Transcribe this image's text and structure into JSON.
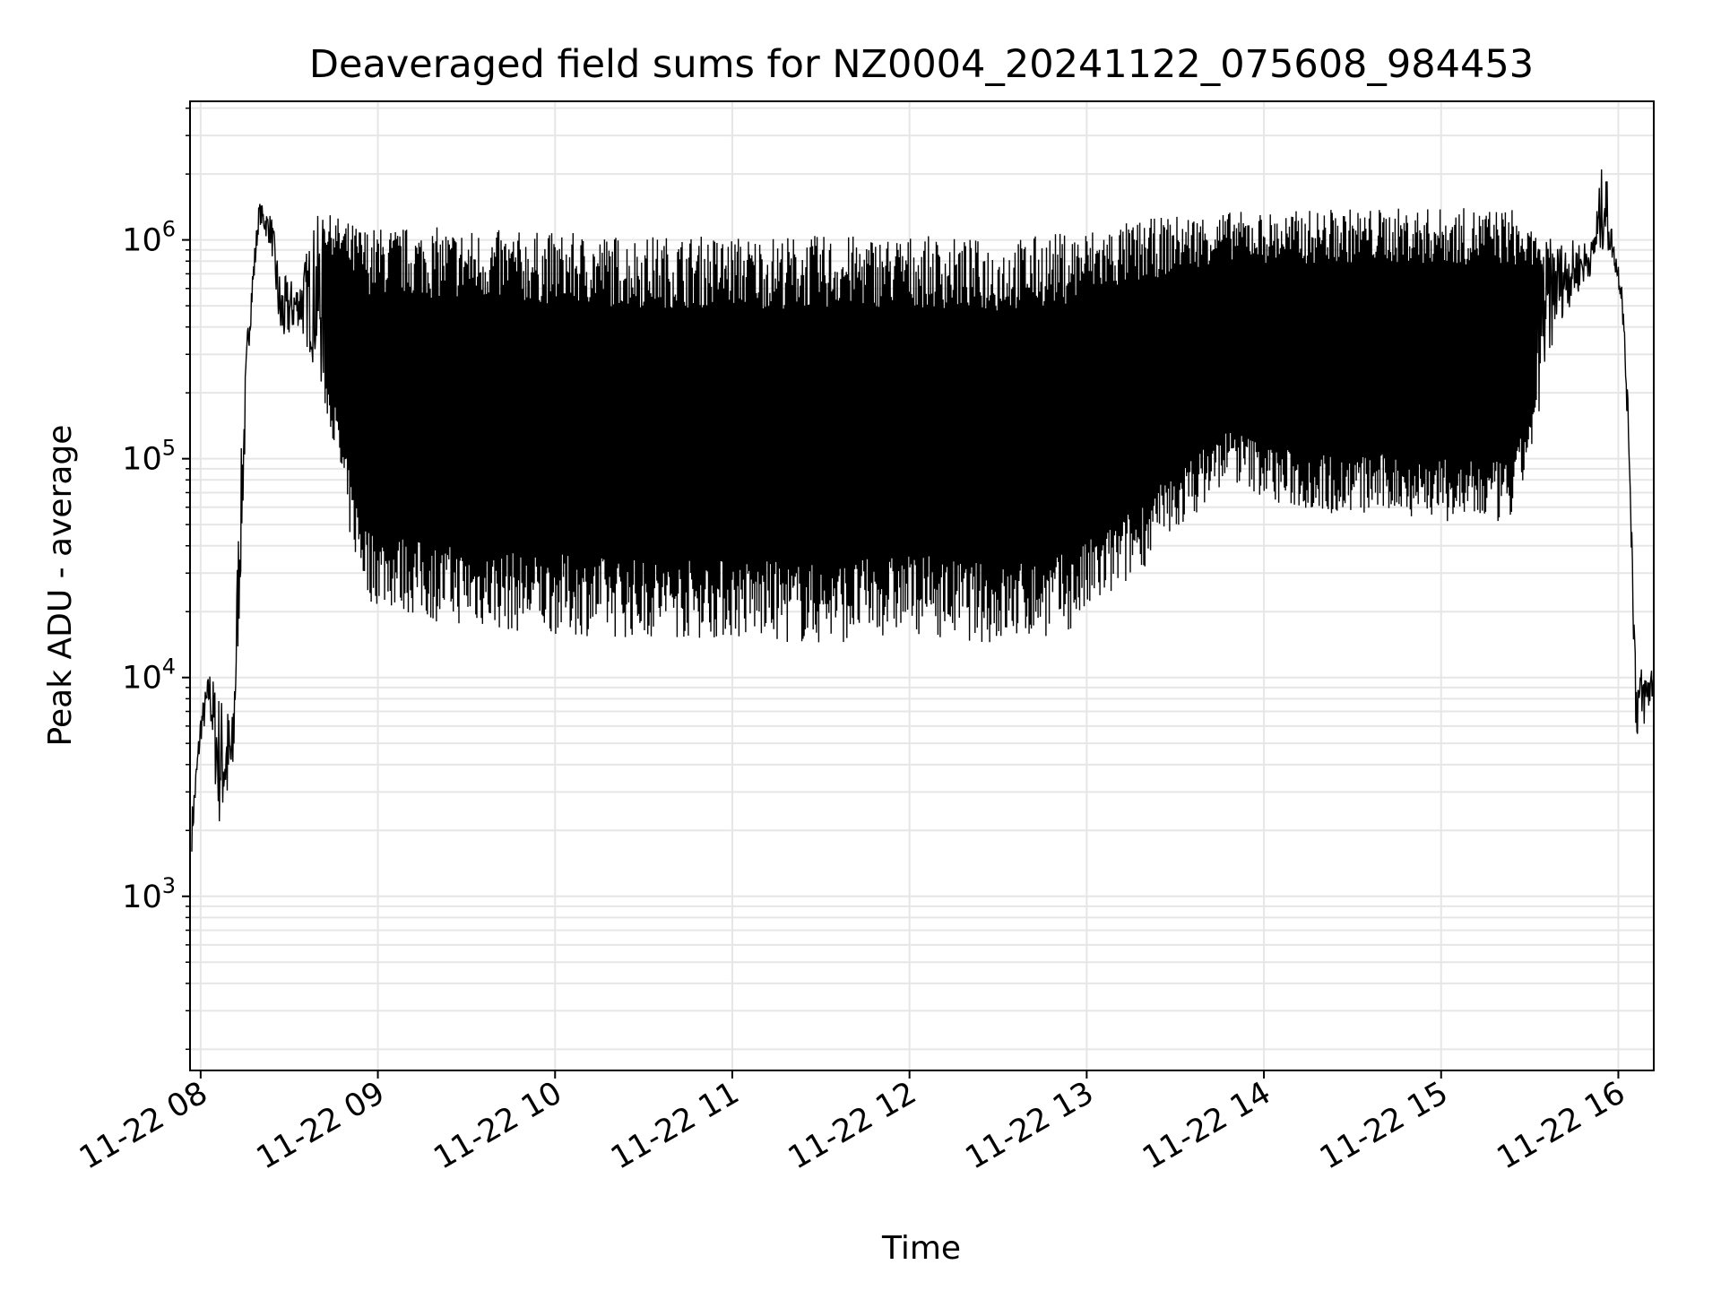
{
  "chart_data": {
    "type": "line",
    "title": "Deaveraged field sums for NZ0004_20241122_075608_984453",
    "xlabel": "Time",
    "ylabel": "Peak ADU - average",
    "yscale": "log",
    "ylim": [
      160,
      4300000
    ],
    "xlim_hours": [
      7.94,
      16.2
    ],
    "grid": true,
    "line_color": "#000000",
    "grid_color": "#e6e6e6",
    "x_ticks": [
      {
        "hour": 8,
        "label": "11-22 08"
      },
      {
        "hour": 9,
        "label": "11-22 09"
      },
      {
        "hour": 10,
        "label": "11-22 10"
      },
      {
        "hour": 11,
        "label": "11-22 11"
      },
      {
        "hour": 12,
        "label": "11-22 12"
      },
      {
        "hour": 13,
        "label": "11-22 13"
      },
      {
        "hour": 14,
        "label": "11-22 14"
      },
      {
        "hour": 15,
        "label": "11-22 15"
      },
      {
        "hour": 16,
        "label": "11-22 16"
      }
    ],
    "y_ticks": [
      {
        "value": 1000,
        "base": "10",
        "exp": "3"
      },
      {
        "value": 10000,
        "base": "10",
        "exp": "4"
      },
      {
        "value": 100000,
        "base": "10",
        "exp": "5"
      },
      {
        "value": 1000000,
        "base": "10",
        "exp": "6"
      }
    ],
    "series": [
      {
        "name": "Peak ADU - average",
        "note": "Rapidly oscillating signal; envelope given as [hour, lower, upper] in ADU",
        "envelope": [
          [
            7.95,
            1600,
            2500
          ],
          [
            8.0,
            5000,
            7000
          ],
          [
            8.05,
            7000,
            11000
          ],
          [
            8.1,
            2000,
            9000
          ],
          [
            8.18,
            2500,
            7000
          ],
          [
            8.22,
            20000,
            80000
          ],
          [
            8.27,
            300000,
            500000
          ],
          [
            8.33,
            1200000,
            1500000
          ],
          [
            8.4,
            900000,
            1300000
          ],
          [
            8.45,
            300000,
            700000
          ],
          [
            8.55,
            400000,
            650000
          ],
          [
            8.65,
            250000,
            1300000
          ],
          [
            8.75,
            120000,
            1300000
          ],
          [
            8.85,
            40000,
            1200000
          ],
          [
            8.95,
            22000,
            1150000
          ],
          [
            9.3,
            18000,
            1150000
          ],
          [
            9.8,
            16000,
            1100000
          ],
          [
            10.5,
            15000,
            1050000
          ],
          [
            11.0,
            15000,
            1050000
          ],
          [
            11.5,
            14000,
            1050000
          ],
          [
            12.0,
            16000,
            1050000
          ],
          [
            12.5,
            14000,
            1000000
          ],
          [
            12.9,
            16000,
            1100000
          ],
          [
            13.2,
            25000,
            1200000
          ],
          [
            13.5,
            45000,
            1300000
          ],
          [
            13.8,
            80000,
            1350000
          ],
          [
            14.1,
            60000,
            1350000
          ],
          [
            14.4,
            55000,
            1400000
          ],
          [
            14.8,
            55000,
            1400000
          ],
          [
            15.1,
            50000,
            1400000
          ],
          [
            15.4,
            50000,
            1400000
          ],
          [
            15.5,
            100000,
            1100000
          ],
          [
            15.65,
            400000,
            1000000
          ],
          [
            15.85,
            700000,
            1000000
          ],
          [
            15.92,
            900000,
            2600000
          ],
          [
            15.97,
            800000,
            1000000
          ],
          [
            16.02,
            500000,
            700000
          ],
          [
            16.06,
            100000,
            150000
          ],
          [
            16.1,
            5000,
            12000
          ],
          [
            16.15,
            6000,
            11000
          ],
          [
            16.2,
            8000,
            12000
          ]
        ]
      }
    ]
  }
}
